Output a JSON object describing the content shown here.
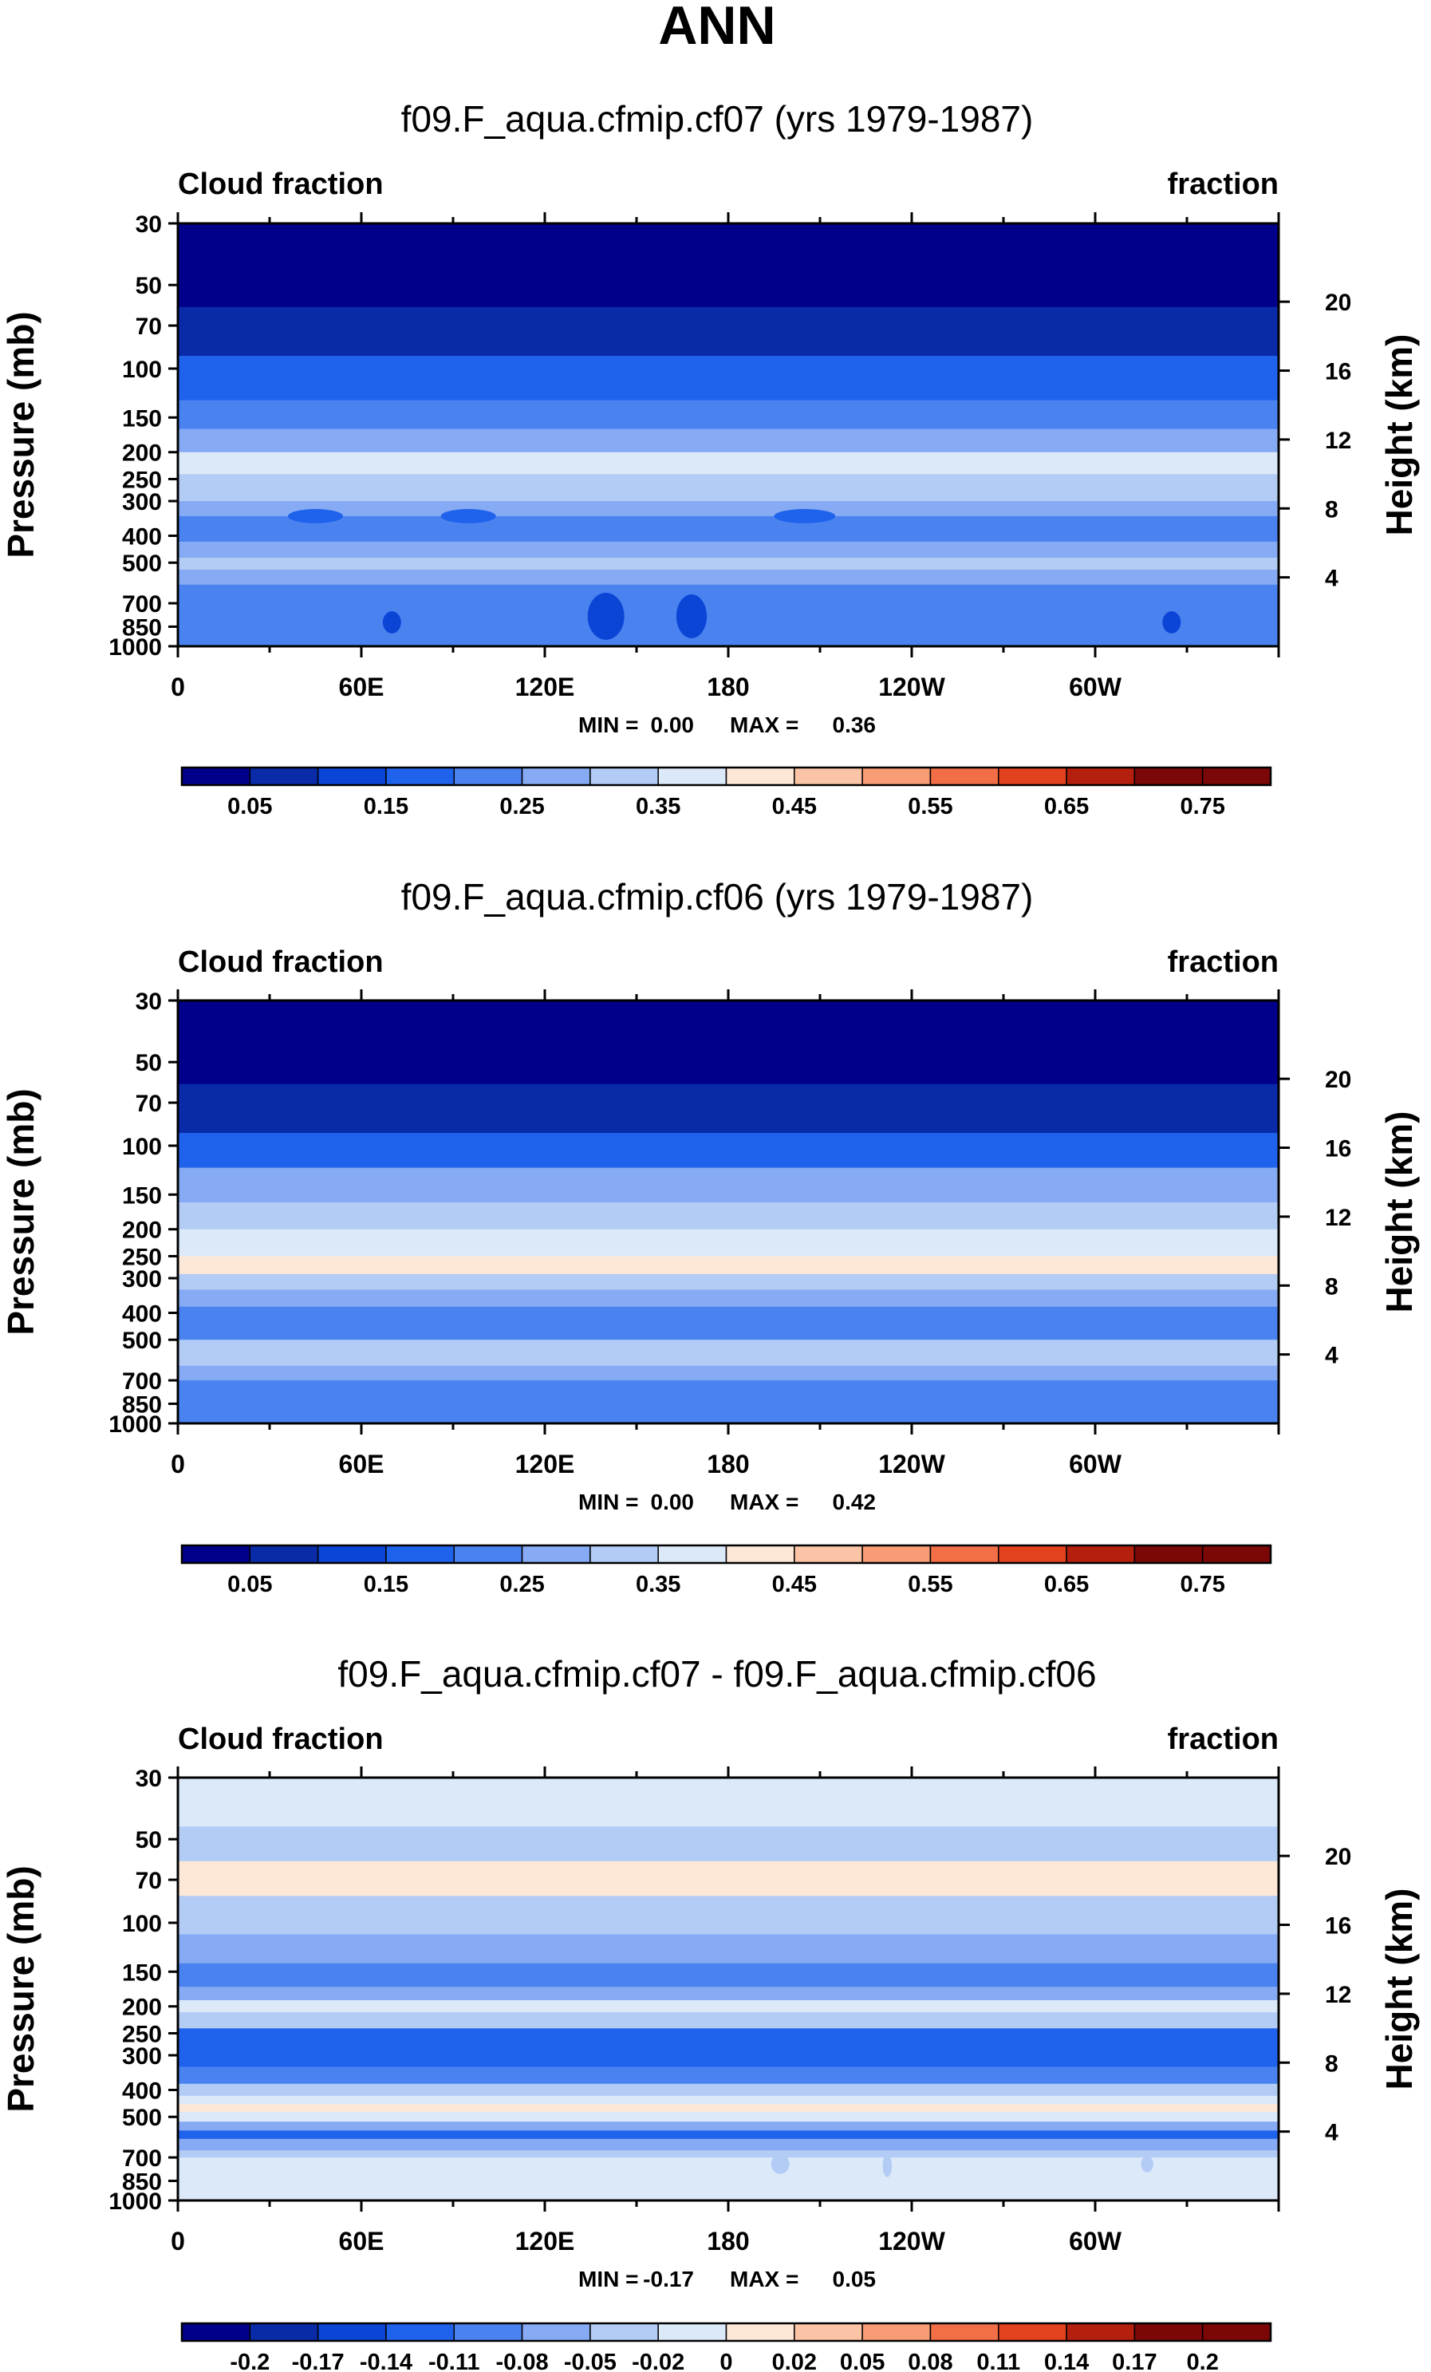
{
  "figure": {
    "title": "ANN"
  },
  "chart_data": [
    {
      "type": "heatmap",
      "title": "f09.F_aqua.cfmip.cf07 (yrs 1979-1987)",
      "left_label": "Cloud fraction",
      "right_label": "fraction",
      "ylabel": "Pressure (mb)",
      "ylabel_right": "Height (km)",
      "x_ticks": [
        "0",
        "60E",
        "120E",
        "180",
        "120W",
        "60W"
      ],
      "x_ticks_deg": [
        0,
        60,
        120,
        180,
        240,
        300
      ],
      "xlim": [
        0,
        360
      ],
      "y_ticks": [
        "30",
        "50",
        "70",
        "100",
        "150",
        "200",
        "250",
        "300",
        "400",
        "500",
        "700",
        "850",
        "1000"
      ],
      "y_ticks_mb": [
        30,
        50,
        70,
        100,
        150,
        200,
        250,
        300,
        400,
        500,
        700,
        850,
        1000
      ],
      "ylim": [
        1000,
        30
      ],
      "y_scale": "log",
      "height_ticks": [
        "20",
        "16",
        "12",
        "8",
        "4"
      ],
      "height_ticks_km": [
        20,
        16,
        12,
        8,
        4
      ],
      "min_label": "MIN =",
      "min_value": "0.00",
      "max_label": "MAX =",
      "max_value": "0.36",
      "colorbar": {
        "levels": [
          0.05,
          0.1,
          0.15,
          0.2,
          0.25,
          0.3,
          0.35,
          0.4,
          0.45,
          0.5,
          0.55,
          0.6,
          0.65,
          0.7,
          0.75
        ],
        "labels": [
          "0.05",
          "0.15",
          "0.25",
          "0.35",
          "0.45",
          "0.55",
          "0.65",
          "0.75"
        ]
      },
      "profile": [
        {
          "p": 30,
          "v": 0.0
        },
        {
          "p": 60,
          "v": 0.05
        },
        {
          "p": 90,
          "v": 0.15
        },
        {
          "p": 130,
          "v": 0.2
        },
        {
          "p": 165,
          "v": 0.28
        },
        {
          "p": 200,
          "v": 0.36
        },
        {
          "p": 240,
          "v": 0.31
        },
        {
          "p": 300,
          "v": 0.26
        },
        {
          "p": 340,
          "v": 0.2
        },
        {
          "p": 420,
          "v": 0.27
        },
        {
          "p": 480,
          "v": 0.33
        },
        {
          "p": 530,
          "v": 0.28
        },
        {
          "p": 600,
          "v": 0.22
        },
        {
          "p": 850,
          "v": 0.2
        },
        {
          "p": 950,
          "v": 0.2
        },
        {
          "p": 1000,
          "v": 0.14
        }
      ],
      "features": [
        {
          "lon": 140,
          "p": 780,
          "width_deg": 12,
          "depth_mb": 300,
          "v": 0.14
        },
        {
          "lon": 168,
          "p": 780,
          "width_deg": 10,
          "depth_mb": 280,
          "v": 0.14
        },
        {
          "lon": 70,
          "p": 820,
          "width_deg": 6,
          "depth_mb": 150,
          "v": 0.14
        },
        {
          "lon": 325,
          "p": 820,
          "width_deg": 6,
          "depth_mb": 150,
          "v": 0.14
        },
        {
          "lon": 45,
          "p": 340,
          "width_deg": 18,
          "depth_mb": 40,
          "v": 0.18
        },
        {
          "lon": 95,
          "p": 340,
          "width_deg": 18,
          "depth_mb": 40,
          "v": 0.18
        },
        {
          "lon": 205,
          "p": 340,
          "width_deg": 20,
          "depth_mb": 40,
          "v": 0.18
        }
      ]
    },
    {
      "type": "heatmap",
      "title": "f09.F_aqua.cfmip.cf06 (yrs 1979-1987)",
      "left_label": "Cloud fraction",
      "right_label": "fraction",
      "ylabel": "Pressure (mb)",
      "ylabel_right": "Height (km)",
      "x_ticks": [
        "0",
        "60E",
        "120E",
        "180",
        "120W",
        "60W"
      ],
      "x_ticks_deg": [
        0,
        60,
        120,
        180,
        240,
        300
      ],
      "xlim": [
        0,
        360
      ],
      "y_ticks": [
        "30",
        "50",
        "70",
        "100",
        "150",
        "200",
        "250",
        "300",
        "400",
        "500",
        "700",
        "850",
        "1000"
      ],
      "y_ticks_mb": [
        30,
        50,
        70,
        100,
        150,
        200,
        250,
        300,
        400,
        500,
        700,
        850,
        1000
      ],
      "ylim": [
        1000,
        30
      ],
      "y_scale": "log",
      "height_ticks": [
        "20",
        "16",
        "12",
        "8",
        "4"
      ],
      "height_ticks_km": [
        20,
        16,
        12,
        8,
        4
      ],
      "min_label": "MIN =",
      "min_value": "0.00",
      "max_label": "MAX =",
      "max_value": "0.42",
      "colorbar": {
        "levels": [
          0.05,
          0.1,
          0.15,
          0.2,
          0.25,
          0.3,
          0.35,
          0.4,
          0.45,
          0.5,
          0.55,
          0.6,
          0.65,
          0.7,
          0.75
        ],
        "labels": [
          "0.05",
          "0.15",
          "0.25",
          "0.35",
          "0.45",
          "0.55",
          "0.65",
          "0.75"
        ]
      },
      "profile": [
        {
          "p": 30,
          "v": 0.0
        },
        {
          "p": 60,
          "v": 0.05
        },
        {
          "p": 90,
          "v": 0.17
        },
        {
          "p": 120,
          "v": 0.27
        },
        {
          "p": 160,
          "v": 0.31
        },
        {
          "p": 200,
          "v": 0.36
        },
        {
          "p": 250,
          "v": 0.41
        },
        {
          "p": 290,
          "v": 0.33
        },
        {
          "p": 330,
          "v": 0.27
        },
        {
          "p": 380,
          "v": 0.22
        },
        {
          "p": 430,
          "v": 0.24
        },
        {
          "p": 500,
          "v": 0.31
        },
        {
          "p": 560,
          "v": 0.32
        },
        {
          "p": 620,
          "v": 0.26
        },
        {
          "p": 700,
          "v": 0.2
        },
        {
          "p": 960,
          "v": 0.2
        },
        {
          "p": 1000,
          "v": 0.14
        }
      ],
      "features": []
    },
    {
      "type": "heatmap",
      "title": "f09.F_aqua.cfmip.cf07 - f09.F_aqua.cfmip.cf06",
      "left_label": "Cloud fraction",
      "right_label": "fraction",
      "ylabel": "Pressure (mb)",
      "ylabel_right": "Height (km)",
      "x_ticks": [
        "0",
        "60E",
        "120E",
        "180",
        "120W",
        "60W"
      ],
      "x_ticks_deg": [
        0,
        60,
        120,
        180,
        240,
        300
      ],
      "xlim": [
        0,
        360
      ],
      "y_ticks": [
        "30",
        "50",
        "70",
        "100",
        "150",
        "200",
        "250",
        "300",
        "400",
        "500",
        "700",
        "850",
        "1000"
      ],
      "y_ticks_mb": [
        30,
        50,
        70,
        100,
        150,
        200,
        250,
        300,
        400,
        500,
        700,
        850,
        1000
      ],
      "ylim": [
        1000,
        30
      ],
      "y_scale": "log",
      "height_ticks": [
        "20",
        "16",
        "12",
        "8",
        "4"
      ],
      "height_ticks_km": [
        20,
        16,
        12,
        8,
        4
      ],
      "min_label": "MIN =",
      "min_value": "-0.17",
      "max_label": "MAX =",
      "max_value": "0.05",
      "colorbar": {
        "levels": [
          -0.2,
          -0.17,
          -0.14,
          -0.11,
          -0.08,
          -0.05,
          -0.02,
          0,
          0.02,
          0.05,
          0.08,
          0.11,
          0.14,
          0.17,
          0.2
        ],
        "labels": [
          "-0.2",
          "-0.17",
          "-0.14",
          "-0.11",
          "-0.08",
          "-0.05",
          "-0.02",
          "0",
          "0.02",
          "0.05",
          "0.08",
          "0.11",
          "0.14",
          "0.17",
          "0.2"
        ]
      },
      "profile": [
        {
          "p": 30,
          "v": -0.01
        },
        {
          "p": 45,
          "v": -0.03
        },
        {
          "p": 60,
          "v": 0.01
        },
        {
          "p": 80,
          "v": -0.04
        },
        {
          "p": 110,
          "v": -0.07
        },
        {
          "p": 140,
          "v": -0.09
        },
        {
          "p": 170,
          "v": -0.06
        },
        {
          "p": 190,
          "v": -0.01
        },
        {
          "p": 210,
          "v": -0.04
        },
        {
          "p": 240,
          "v": -0.12
        },
        {
          "p": 280,
          "v": -0.13
        },
        {
          "p": 330,
          "v": -0.09
        },
        {
          "p": 380,
          "v": -0.05
        },
        {
          "p": 420,
          "v": -0.01
        },
        {
          "p": 450,
          "v": 0.01
        },
        {
          "p": 480,
          "v": -0.02
        },
        {
          "p": 520,
          "v": -0.07
        },
        {
          "p": 560,
          "v": -0.12
        },
        {
          "p": 600,
          "v": -0.08
        },
        {
          "p": 660,
          "v": -0.04
        },
        {
          "p": 700,
          "v": -0.02
        },
        {
          "p": 1000,
          "v": -0.01
        }
      ],
      "features": [
        {
          "lon": 197,
          "p": 740,
          "width_deg": 6,
          "depth_mb": 120,
          "v": -0.04
        },
        {
          "lon": 232,
          "p": 750,
          "width_deg": 3,
          "depth_mb": 140,
          "v": -0.04
        },
        {
          "lon": 317,
          "p": 740,
          "width_deg": 4,
          "depth_mb": 100,
          "v": -0.04
        }
      ]
    }
  ]
}
